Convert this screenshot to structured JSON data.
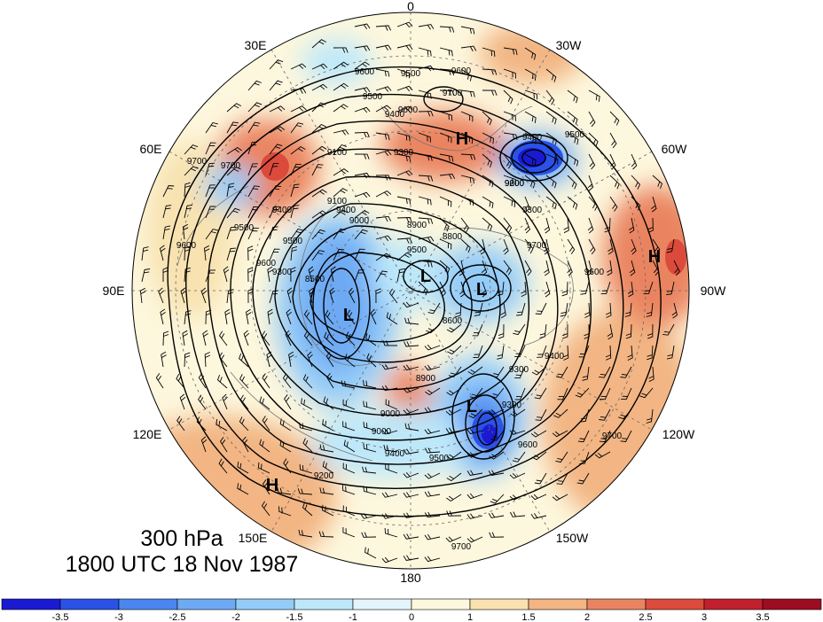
{
  "map": {
    "projection": "north-polar-stereographic",
    "longitude_labels": {
      "top": "0",
      "top_left": "30E",
      "top_right": "30W",
      "upper_left": "60E",
      "upper_right": "60W",
      "left": "90E",
      "right": "90W",
      "lower_left": "120E",
      "lower_right": "120W",
      "bottom_left": "150E",
      "bottom_right": "150W",
      "bottom": "180"
    },
    "pressure_centers": [
      {
        "label": "H",
        "name": "high-north-atlantic"
      },
      {
        "label": "H",
        "name": "high-eastern-canada"
      },
      {
        "label": "H",
        "name": "high-north-pacific"
      },
      {
        "label": "L",
        "name": "low-polar"
      },
      {
        "label": "L",
        "name": "low-baffin"
      },
      {
        "label": "L",
        "name": "low-siberia"
      },
      {
        "label": "L",
        "name": "low-bering"
      }
    ],
    "contour_labels": [
      "9600",
      "9500",
      "9600",
      "9700",
      "9500",
      "9600",
      "9400",
      "9300",
      "9200",
      "9400",
      "9500",
      "9100",
      "9400",
      "9500",
      "9300",
      "9700",
      "9600",
      "9500",
      "9600",
      "9100",
      "9000",
      "8900",
      "8800",
      "8500",
      "8600",
      "9000",
      "9400",
      "9500",
      "9300",
      "9600",
      "9700",
      "9200",
      "9300",
      "9400",
      "9600",
      "9700",
      "9700",
      "9400",
      "9500",
      "9000",
      "9600",
      "9700",
      "8900",
      "9300"
    ]
  },
  "title": {
    "level": "300 hPa",
    "time": "1800 UTC 18 Nov 1987"
  },
  "colorbar": {
    "tick_labels": [
      "-3.5",
      "-3",
      "-2.5",
      "-2",
      "-1.5",
      "-1",
      "0",
      "1",
      "1.5",
      "2",
      "2.5",
      "3",
      "3.5"
    ],
    "colors": [
      "#1a1ad2",
      "#2a52e6",
      "#4a86f0",
      "#6eaaf4",
      "#94ccf8",
      "#bde8fa",
      "#e4f4fb",
      "#fdf7dd",
      "#f8e2b0",
      "#f2b583",
      "#ea8460",
      "#dc4a3c",
      "#c21f2e",
      "#9d0d22"
    ]
  }
}
